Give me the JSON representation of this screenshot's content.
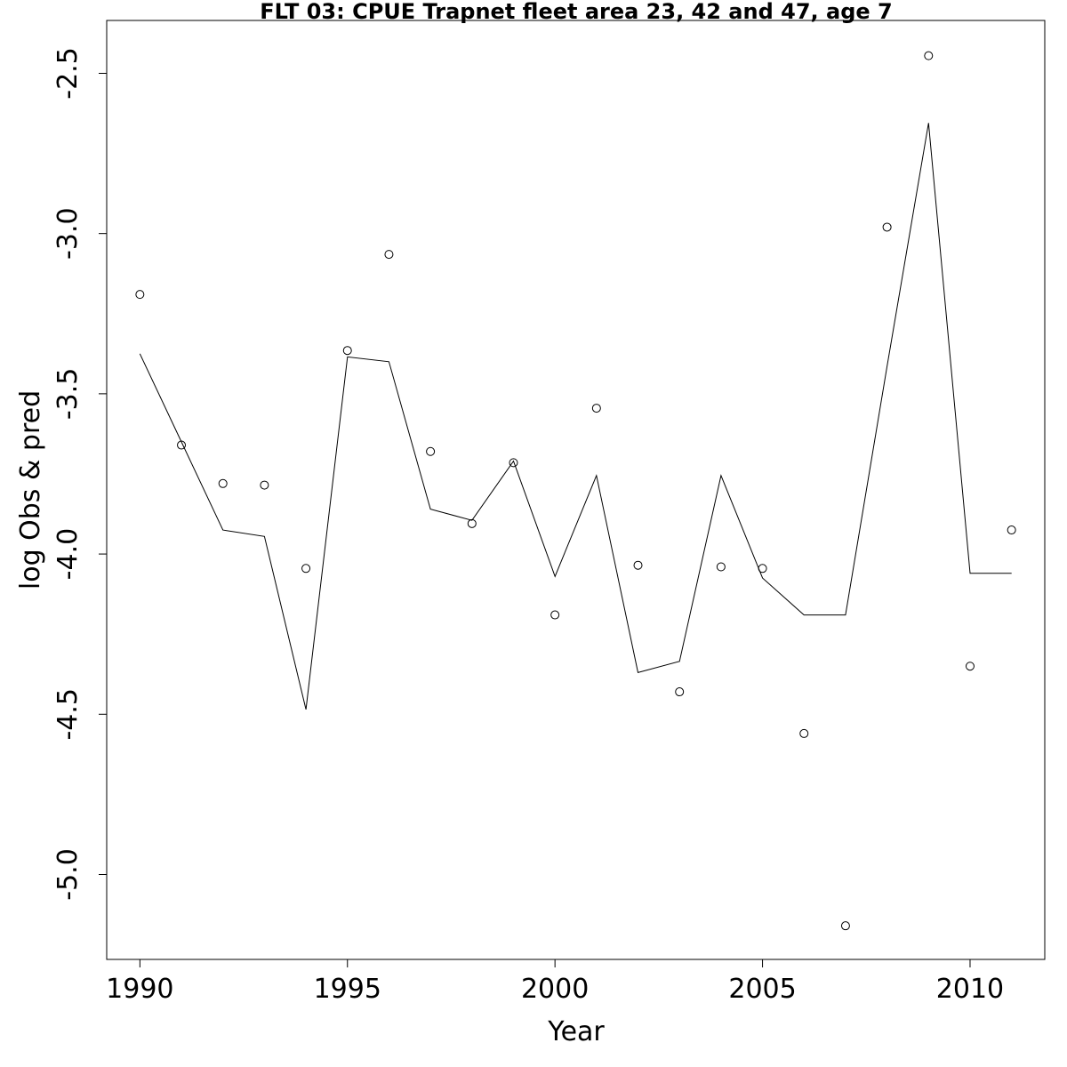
{
  "chart_data": {
    "type": "line",
    "title": "FLT 03: CPUE Trapnet fleet area 23, 42 and 47, age 7",
    "xlabel": "Year",
    "ylabel": "log Obs & pred",
    "xlim": [
      1989.2,
      2011.8
    ],
    "ylim": [
      -5.265,
      -2.335
    ],
    "x_ticks": [
      1990,
      1995,
      2000,
      2005,
      2010
    ],
    "x_tick_labels": [
      "1990",
      "1995",
      "2000",
      "2005",
      "2010"
    ],
    "y_ticks": [
      -2.5,
      -3.0,
      -3.5,
      -4.0,
      -4.5,
      -5.0
    ],
    "y_tick_labels": [
      "-2.5",
      "-3.0",
      "-3.5",
      "-4.0",
      "-4.5",
      "-5.0"
    ],
    "grid": false,
    "x": [
      1990,
      1991,
      1992,
      1993,
      1994,
      1995,
      1996,
      1997,
      1998,
      1999,
      2000,
      2001,
      2002,
      2003,
      2004,
      2005,
      2006,
      2007,
      2008,
      2009,
      2010,
      2011
    ],
    "series": [
      {
        "name": "Obs",
        "style": "points",
        "values": [
          -3.19,
          -3.66,
          -3.78,
          -3.785,
          -4.045,
          -3.365,
          -3.065,
          -3.68,
          -3.905,
          -3.715,
          -4.19,
          -3.545,
          -4.035,
          -4.43,
          -4.04,
          -4.045,
          -4.56,
          -5.16,
          -2.98,
          -2.445,
          -4.35,
          -3.925
        ]
      },
      {
        "name": "pred",
        "style": "line",
        "values": [
          -3.375,
          -3.65,
          -3.925,
          -3.945,
          -4.485,
          -3.385,
          -3.4,
          -3.86,
          -3.895,
          -3.71,
          -4.07,
          -3.755,
          -4.37,
          -4.335,
          -3.755,
          -4.075,
          -4.19,
          -4.19,
          -3.415,
          -2.655,
          -4.06,
          -4.06
        ]
      }
    ],
    "colors": {
      "line": "#000000",
      "points": "#000000",
      "frame": "#000000"
    }
  }
}
